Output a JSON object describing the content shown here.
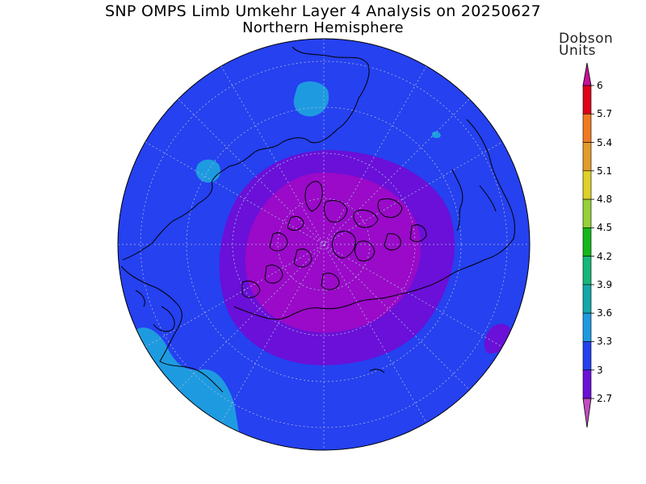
{
  "title": "SNP OMPS Limb Umkehr Layer 4 Analysis on 20250627",
  "subtitle": "Northern Hemisphere",
  "units_line1": "Dobson",
  "units_line2": "Units",
  "colorbar": {
    "ticks": [
      "6",
      "5.7",
      "5.4",
      "5.1",
      "4.8",
      "4.5",
      "4.2",
      "3.9",
      "3.6",
      "3.3",
      "3",
      "2.7"
    ],
    "segments": [
      {
        "from": 5.7,
        "to": 6.0,
        "color": "#e0001a"
      },
      {
        "from": 5.4,
        "to": 5.7,
        "color": "#f07a20"
      },
      {
        "from": 5.1,
        "to": 5.4,
        "color": "#e39b2a"
      },
      {
        "from": 4.8,
        "to": 5.1,
        "color": "#e0d02a"
      },
      {
        "from": 4.5,
        "to": 4.8,
        "color": "#96d03a"
      },
      {
        "from": 4.2,
        "to": 4.5,
        "color": "#13b81a"
      },
      {
        "from": 3.9,
        "to": 4.2,
        "color": "#15b878"
      },
      {
        "from": 3.6,
        "to": 3.9,
        "color": "#13a8a8"
      },
      {
        "from": 3.3,
        "to": 3.6,
        "color": "#1e9be0"
      },
      {
        "from": 3.0,
        "to": 3.3,
        "color": "#2541f0"
      },
      {
        "from": 2.7,
        "to": 3.0,
        "color": "#6a10d8"
      }
    ],
    "over_color": "#c8109a",
    "under_color": "#c04cc0"
  },
  "map_colors": {
    "background_level": "#2541f0",
    "ring_level": "#6a10d8",
    "core_level": "#9a0ac8",
    "high_level": "#1e9be0"
  }
}
